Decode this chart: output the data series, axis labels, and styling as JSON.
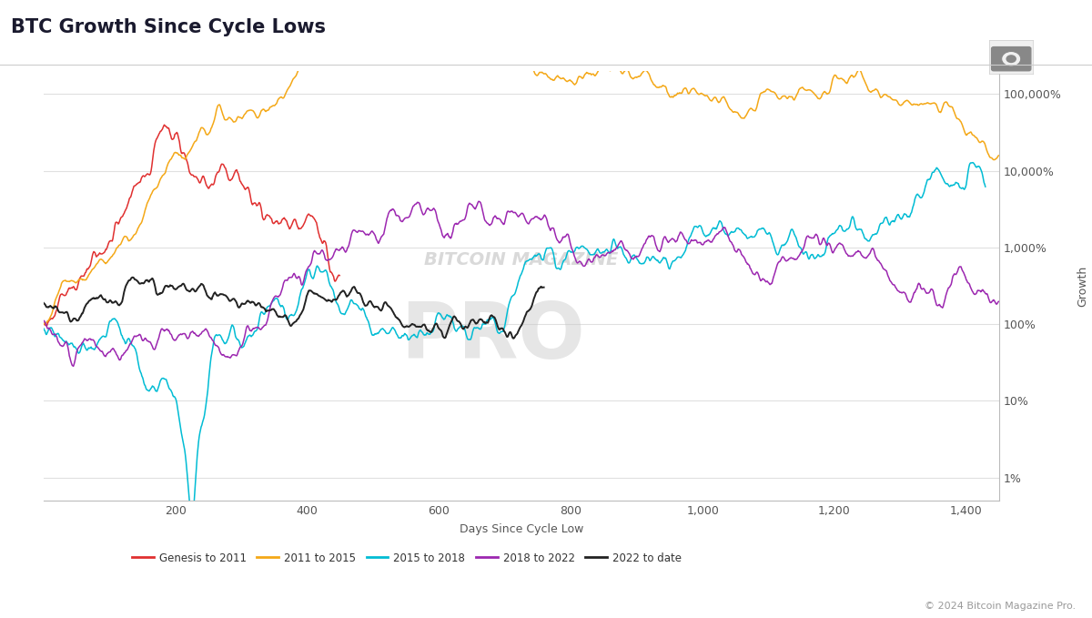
{
  "title": "BTC Growth Since Cycle Lows",
  "xlabel": "Days Since Cycle Low",
  "ylabel": "Growth",
  "background_color": "#ffffff",
  "title_fontsize": 15,
  "title_color": "#1a1a2e",
  "watermark_line1": "BITCOIN MAGAZINE",
  "watermark_line2": "PRO",
  "copyright": "© 2024 Bitcoin Magazine Pro.",
  "legend_entries": [
    {
      "label": "Genesis to 2011",
      "color": "#e03030"
    },
    {
      "label": "2011 to 2015",
      "color": "#f4a817"
    },
    {
      "label": "2015 to 2018",
      "color": "#00bcd4"
    },
    {
      "label": "2018 to 2022",
      "color": "#9c27b0"
    },
    {
      "label": "2022 to date",
      "color": "#222222"
    }
  ],
  "xmax": 1450,
  "yticks_labels": [
    "1%",
    "10%",
    "100%",
    "1,000%",
    "10,000%",
    "100,000%"
  ],
  "yticks_values": [
    1,
    10,
    100,
    1000,
    10000,
    100000
  ]
}
